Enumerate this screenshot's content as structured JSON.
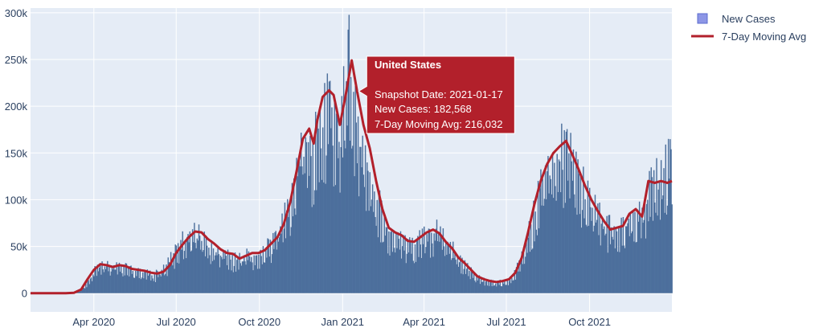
{
  "chart_data": {
    "type": "bar+line",
    "xlabel": "",
    "ylabel": "",
    "xlim": [
      "2020-01-22",
      "2021-12-31"
    ],
    "ylim": [
      -20000,
      305000
    ],
    "x_ticks": [
      {
        "date": "2020-04-01",
        "label": "Apr 2020"
      },
      {
        "date": "2020-07-01",
        "label": "Jul 2020"
      },
      {
        "date": "2020-10-01",
        "label": "Oct 2020"
      },
      {
        "date": "2021-01-01",
        "label": "Jan 2021"
      },
      {
        "date": "2021-04-01",
        "label": "Apr 2021"
      },
      {
        "date": "2021-07-01",
        "label": "Jul 2021"
      },
      {
        "date": "2021-10-01",
        "label": "Oct 2021"
      }
    ],
    "y_ticks": [
      {
        "value": 0,
        "label": "0"
      },
      {
        "value": 50000,
        "label": "50k"
      },
      {
        "value": 100000,
        "label": "100k"
      },
      {
        "value": 150000,
        "label": "150k"
      },
      {
        "value": 200000,
        "label": "200k"
      },
      {
        "value": 250000,
        "label": "250k"
      },
      {
        "value": 300000,
        "label": "300k"
      }
    ],
    "grid": true,
    "legend_position": "top-right",
    "series": [
      {
        "name": "New Cases",
        "type": "bar",
        "color": "#4c6f9c",
        "legend_color": "#8d96e6",
        "points": [
          [
            "2020-01-22",
            0
          ],
          [
            "2020-03-01",
            0
          ],
          [
            "2020-03-08",
            300
          ],
          [
            "2020-03-15",
            1500
          ],
          [
            "2020-03-22",
            8000
          ],
          [
            "2020-03-29",
            20000
          ],
          [
            "2020-04-05",
            30000
          ],
          [
            "2020-04-12",
            32000
          ],
          [
            "2020-04-19",
            30000
          ],
          [
            "2020-04-26",
            33000
          ],
          [
            "2020-05-03",
            30000
          ],
          [
            "2020-05-10",
            27000
          ],
          [
            "2020-05-17",
            25000
          ],
          [
            "2020-05-24",
            24000
          ],
          [
            "2020-05-31",
            22000
          ],
          [
            "2020-06-07",
            21000
          ],
          [
            "2020-06-14",
            24000
          ],
          [
            "2020-06-21",
            32000
          ],
          [
            "2020-06-28",
            44000
          ],
          [
            "2020-07-05",
            55000
          ],
          [
            "2020-07-12",
            64000
          ],
          [
            "2020-07-19",
            68000
          ],
          [
            "2020-07-26",
            66000
          ],
          [
            "2020-08-02",
            58000
          ],
          [
            "2020-08-09",
            54000
          ],
          [
            "2020-08-16",
            48000
          ],
          [
            "2020-08-23",
            44000
          ],
          [
            "2020-08-30",
            42000
          ],
          [
            "2020-09-06",
            38000
          ],
          [
            "2020-09-13",
            40000
          ],
          [
            "2020-09-20",
            43000
          ],
          [
            "2020-09-27",
            44000
          ],
          [
            "2020-10-04",
            46000
          ],
          [
            "2020-10-11",
            52000
          ],
          [
            "2020-10-18",
            58000
          ],
          [
            "2020-10-25",
            75000
          ],
          [
            "2020-11-01",
            95000
          ],
          [
            "2020-11-08",
            130000
          ],
          [
            "2020-11-15",
            160000
          ],
          [
            "2020-11-22",
            178000
          ],
          [
            "2020-11-29",
            165000
          ],
          [
            "2020-12-06",
            200000
          ],
          [
            "2020-12-13",
            210000
          ],
          [
            "2020-12-20",
            215000
          ],
          [
            "2020-12-27",
            180000
          ],
          [
            "2021-01-03",
            220000
          ],
          [
            "2021-01-08",
            260000
          ],
          [
            "2021-01-10",
            245000
          ],
          [
            "2021-01-17",
            182568
          ],
          [
            "2021-01-24",
            160000
          ],
          [
            "2021-01-31",
            140000
          ],
          [
            "2021-02-07",
            115000
          ],
          [
            "2021-02-14",
            90000
          ],
          [
            "2021-02-21",
            70000
          ],
          [
            "2021-02-28",
            65000
          ],
          [
            "2021-03-07",
            62000
          ],
          [
            "2021-03-14",
            55000
          ],
          [
            "2021-03-21",
            56000
          ],
          [
            "2021-03-28",
            62000
          ],
          [
            "2021-04-04",
            65000
          ],
          [
            "2021-04-11",
            70000
          ],
          [
            "2021-04-18",
            68000
          ],
          [
            "2021-04-25",
            58000
          ],
          [
            "2021-05-02",
            50000
          ],
          [
            "2021-05-09",
            40000
          ],
          [
            "2021-05-16",
            33000
          ],
          [
            "2021-05-23",
            25000
          ],
          [
            "2021-05-30",
            18000
          ],
          [
            "2021-06-06",
            15000
          ],
          [
            "2021-06-13",
            13000
          ],
          [
            "2021-06-20",
            12000
          ],
          [
            "2021-06-27",
            13000
          ],
          [
            "2021-07-04",
            15000
          ],
          [
            "2021-07-11",
            25000
          ],
          [
            "2021-07-18",
            40000
          ],
          [
            "2021-07-25",
            65000
          ],
          [
            "2021-08-01",
            95000
          ],
          [
            "2021-08-08",
            120000
          ],
          [
            "2021-08-15",
            140000
          ],
          [
            "2021-08-22",
            155000
          ],
          [
            "2021-08-29",
            160000
          ],
          [
            "2021-09-05",
            165000
          ],
          [
            "2021-09-12",
            150000
          ],
          [
            "2021-09-19",
            135000
          ],
          [
            "2021-09-26",
            115000
          ],
          [
            "2021-10-03",
            100000
          ],
          [
            "2021-10-10",
            90000
          ],
          [
            "2021-10-17",
            80000
          ],
          [
            "2021-10-24",
            72000
          ],
          [
            "2021-10-31",
            75000
          ],
          [
            "2021-11-07",
            78000
          ],
          [
            "2021-11-14",
            90000
          ],
          [
            "2021-11-21",
            95000
          ],
          [
            "2021-11-28",
            85000
          ],
          [
            "2021-12-05",
            120000
          ],
          [
            "2021-12-12",
            125000
          ],
          [
            "2021-12-19",
            130000
          ],
          [
            "2021-12-26",
            150000
          ],
          [
            "2021-12-31",
            157000
          ]
        ]
      },
      {
        "name": "7-Day Moving Avg",
        "type": "line",
        "color": "#b2202b",
        "points": [
          [
            "2020-01-22",
            0
          ],
          [
            "2020-03-01",
            0
          ],
          [
            "2020-03-10",
            500
          ],
          [
            "2020-03-18",
            4000
          ],
          [
            "2020-03-25",
            15000
          ],
          [
            "2020-04-01",
            25000
          ],
          [
            "2020-04-08",
            31000
          ],
          [
            "2020-04-15",
            30000
          ],
          [
            "2020-04-22",
            28000
          ],
          [
            "2020-04-29",
            30000
          ],
          [
            "2020-05-06",
            29000
          ],
          [
            "2020-05-13",
            26000
          ],
          [
            "2020-05-20",
            25000
          ],
          [
            "2020-05-27",
            24000
          ],
          [
            "2020-06-03",
            22000
          ],
          [
            "2020-06-10",
            21000
          ],
          [
            "2020-06-17",
            23000
          ],
          [
            "2020-06-24",
            30000
          ],
          [
            "2020-07-01",
            43000
          ],
          [
            "2020-07-08",
            52000
          ],
          [
            "2020-07-15",
            60000
          ],
          [
            "2020-07-22",
            66000
          ],
          [
            "2020-07-29",
            65000
          ],
          [
            "2020-08-05",
            58000
          ],
          [
            "2020-08-12",
            53000
          ],
          [
            "2020-08-19",
            47000
          ],
          [
            "2020-08-26",
            43000
          ],
          [
            "2020-09-02",
            42000
          ],
          [
            "2020-09-09",
            37000
          ],
          [
            "2020-09-16",
            40000
          ],
          [
            "2020-09-23",
            43000
          ],
          [
            "2020-09-30",
            43000
          ],
          [
            "2020-10-07",
            46000
          ],
          [
            "2020-10-14",
            53000
          ],
          [
            "2020-10-21",
            60000
          ],
          [
            "2020-10-28",
            74000
          ],
          [
            "2020-11-04",
            97000
          ],
          [
            "2020-11-11",
            130000
          ],
          [
            "2020-11-18",
            165000
          ],
          [
            "2020-11-25",
            176000
          ],
          [
            "2020-11-30",
            160000
          ],
          [
            "2020-12-04",
            185000
          ],
          [
            "2020-12-10",
            210000
          ],
          [
            "2020-12-17",
            217000
          ],
          [
            "2020-12-22",
            212000
          ],
          [
            "2020-12-29",
            180000
          ],
          [
            "2021-01-04",
            210000
          ],
          [
            "2021-01-11",
            249000
          ],
          [
            "2021-01-17",
            216032
          ],
          [
            "2021-01-24",
            180000
          ],
          [
            "2021-01-31",
            155000
          ],
          [
            "2021-02-07",
            120000
          ],
          [
            "2021-02-14",
            90000
          ],
          [
            "2021-02-21",
            70000
          ],
          [
            "2021-02-28",
            65000
          ],
          [
            "2021-03-07",
            62000
          ],
          [
            "2021-03-14",
            56000
          ],
          [
            "2021-03-21",
            55000
          ],
          [
            "2021-03-28",
            60000
          ],
          [
            "2021-04-04",
            65000
          ],
          [
            "2021-04-11",
            68000
          ],
          [
            "2021-04-18",
            64000
          ],
          [
            "2021-04-25",
            55000
          ],
          [
            "2021-05-02",
            48000
          ],
          [
            "2021-05-09",
            38000
          ],
          [
            "2021-05-16",
            32000
          ],
          [
            "2021-05-23",
            25000
          ],
          [
            "2021-05-30",
            18000
          ],
          [
            "2021-06-06",
            15000
          ],
          [
            "2021-06-13",
            13000
          ],
          [
            "2021-06-20",
            12000
          ],
          [
            "2021-06-27",
            13000
          ],
          [
            "2021-07-04",
            15000
          ],
          [
            "2021-07-11",
            22000
          ],
          [
            "2021-07-18",
            38000
          ],
          [
            "2021-07-25",
            65000
          ],
          [
            "2021-08-01",
            95000
          ],
          [
            "2021-08-08",
            120000
          ],
          [
            "2021-08-15",
            138000
          ],
          [
            "2021-08-22",
            150000
          ],
          [
            "2021-08-29",
            157000
          ],
          [
            "2021-09-05",
            163000
          ],
          [
            "2021-09-12",
            148000
          ],
          [
            "2021-09-19",
            132000
          ],
          [
            "2021-09-26",
            115000
          ],
          [
            "2021-10-03",
            100000
          ],
          [
            "2021-10-10",
            88000
          ],
          [
            "2021-10-17",
            77000
          ],
          [
            "2021-10-24",
            68000
          ],
          [
            "2021-10-31",
            70000
          ],
          [
            "2021-11-07",
            72000
          ],
          [
            "2021-11-14",
            85000
          ],
          [
            "2021-11-21",
            90000
          ],
          [
            "2021-11-28",
            82000
          ],
          [
            "2021-12-05",
            120000
          ],
          [
            "2021-12-12",
            118000
          ],
          [
            "2021-12-19",
            120000
          ],
          [
            "2021-12-26",
            118000
          ],
          [
            "2021-12-31",
            120000
          ]
        ]
      }
    ]
  },
  "tooltip": {
    "title": "United States",
    "lines": [
      "Snapshot Date: 2021-01-17",
      "New Cases: 182,568",
      "7-Day Moving Avg: 216,032"
    ],
    "background": "#b2202b",
    "date": "2021-01-17",
    "value": 216032
  },
  "colors": {
    "plot_background": "#e5ecf6",
    "grid": "#ffffff",
    "tick_text": "#2a3f5f"
  }
}
